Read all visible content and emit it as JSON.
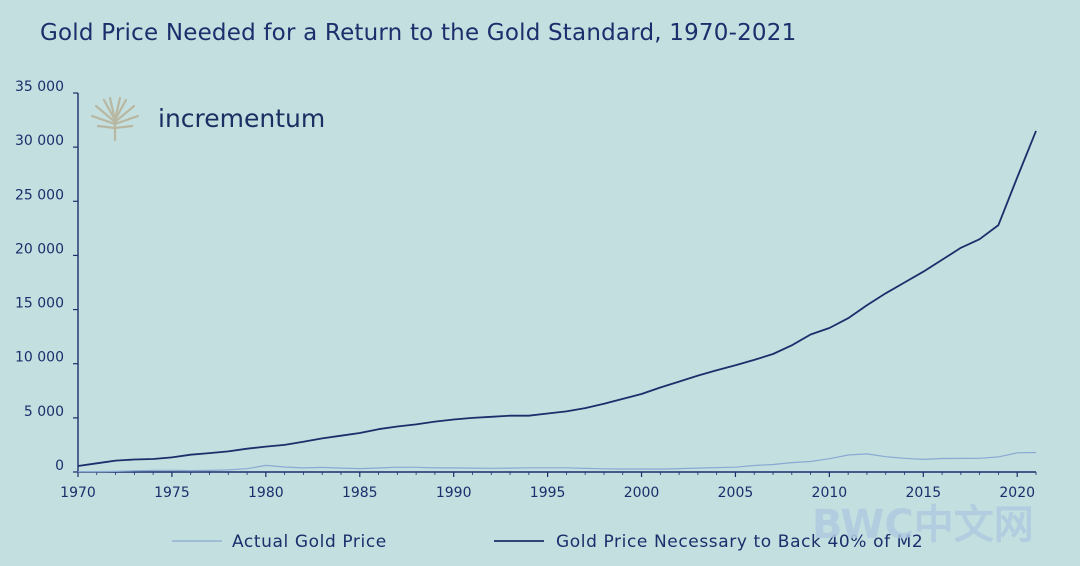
{
  "title": "Gold Price Needed for a Return to the Gold Standard, 1970-2021",
  "logo": {
    "name": "incrementum",
    "icon": "tree-icon"
  },
  "watermark": "BWC中文网",
  "colors": {
    "background": "#c3dfdf",
    "actual_gold_price": "#8aa9d4",
    "gold_standard_price": "#1a2f6b",
    "axis": "#1a2f6b"
  },
  "chart_data": {
    "type": "line",
    "title": "Gold Price Needed for a Return to the Gold Standard, 1970-2021",
    "xlabel": "",
    "ylabel": "",
    "xlim": [
      1970,
      2021
    ],
    "ylim": [
      0,
      35000
    ],
    "x_ticks": [
      "1970",
      "1975",
      "1980",
      "1985",
      "1990",
      "1995",
      "2000",
      "2005",
      "2010",
      "2015",
      "2020"
    ],
    "y_ticks": [
      "0",
      "5 000",
      "10 000",
      "15 000",
      "20 000",
      "25 000",
      "30 000",
      "35 000"
    ],
    "grid": false,
    "legend_position": "bottom",
    "series": [
      {
        "name": "Actual Gold Price",
        "x": [
          1970,
          1971,
          1972,
          1973,
          1974,
          1975,
          1976,
          1977,
          1978,
          1979,
          1980,
          1981,
          1982,
          1983,
          1984,
          1985,
          1986,
          1987,
          1988,
          1989,
          1990,
          1991,
          1992,
          1993,
          1994,
          1995,
          1996,
          1997,
          1998,
          1999,
          2000,
          2001,
          2002,
          2003,
          2004,
          2005,
          2006,
          2007,
          2008,
          2009,
          2010,
          2011,
          2012,
          2013,
          2014,
          2015,
          2016,
          2017,
          2018,
          2019,
          2020,
          2021
        ],
        "y": [
          36,
          41,
          58,
          97,
          154,
          161,
          125,
          148,
          193,
          307,
          612,
          460,
          376,
          424,
          361,
          317,
          368,
          447,
          437,
          381,
          383,
          362,
          344,
          360,
          384,
          384,
          388,
          331,
          294,
          279,
          279,
          271,
          310,
          363,
          409,
          444,
          603,
          695,
          872,
          972,
          1224,
          1571,
          1669,
          1411,
          1266,
          1160,
          1251,
          1257,
          1268,
          1393,
          1770,
          1800
        ]
      },
      {
        "name": "Gold Price Necessary to Back 40% of M2",
        "x": [
          1970,
          1971,
          1972,
          1973,
          1974,
          1975,
          1976,
          1977,
          1978,
          1979,
          1980,
          1981,
          1982,
          1983,
          1984,
          1985,
          1986,
          1987,
          1988,
          1989,
          1990,
          1991,
          1992,
          1993,
          1994,
          1995,
          1996,
          1997,
          1998,
          1999,
          2000,
          2001,
          2002,
          2003,
          2004,
          2005,
          2006,
          2007,
          2008,
          2009,
          2010,
          2011,
          2012,
          2013,
          2014,
          2015,
          2016,
          2017,
          2018,
          2019,
          2020,
          2021
        ],
        "y": [
          550,
          800,
          1050,
          1150,
          1200,
          1350,
          1600,
          1750,
          1900,
          2150,
          2350,
          2500,
          2800,
          3100,
          3350,
          3600,
          3950,
          4200,
          4400,
          4650,
          4850,
          5000,
          5100,
          5200,
          5200,
          5400,
          5600,
          5900,
          6300,
          6750,
          7200,
          7800,
          8350,
          8900,
          9400,
          9850,
          10350,
          10900,
          11700,
          12700,
          13300,
          14200,
          15400,
          16500,
          17500,
          18500,
          19600,
          20700,
          21500,
          22800,
          27200,
          31500
        ]
      }
    ]
  }
}
